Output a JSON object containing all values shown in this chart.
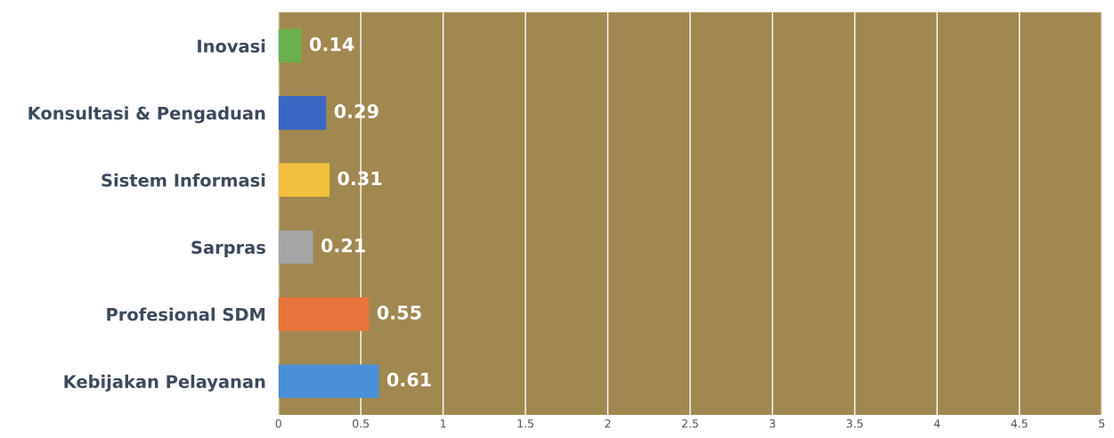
{
  "chart_data": {
    "type": "bar",
    "orientation": "horizontal",
    "categories": [
      "Inovasi",
      "Konsultasi & Pengaduan",
      "Sistem Informasi",
      "Sarpras",
      "Profesional SDM",
      "Kebijakan Pelayanan"
    ],
    "values": [
      0.14,
      0.29,
      0.31,
      0.21,
      0.55,
      0.61
    ],
    "colors": [
      "#6ab04c",
      "#3a66c4",
      "#f2c03e",
      "#a5a5a5",
      "#e8743b",
      "#4a90d9"
    ],
    "xlim": [
      0,
      5
    ],
    "xticks": [
      0,
      0.5,
      1,
      1.5,
      2,
      2.5,
      3,
      3.5,
      4,
      4.5,
      5
    ],
    "grid": "x",
    "data_labels": true
  }
}
